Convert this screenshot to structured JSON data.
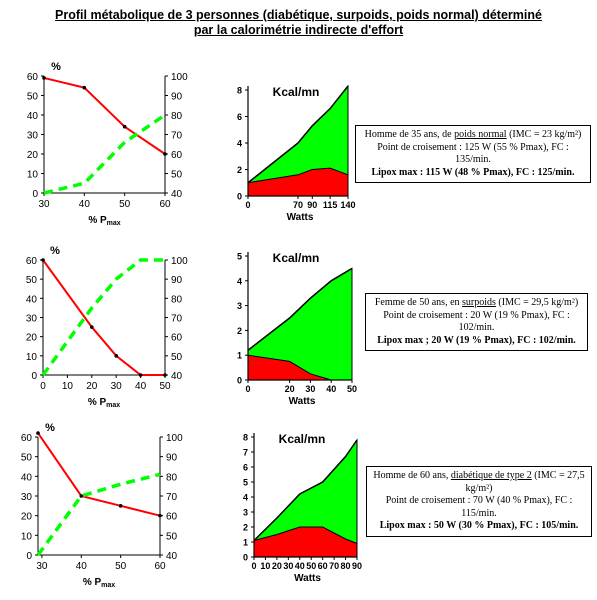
{
  "title": {
    "line1": "Profil métabolique de 3 personnes (diabétique, surpoids, poids normal) déterminé",
    "line2": "par la calorimétrie indirecte d'effort"
  },
  "colors": {
    "red": "#ff0000",
    "green": "#00ff00",
    "green_dashed": "#00ff00",
    "black": "#000000"
  },
  "persons": [
    {
      "info": {
        "line1_pre": "Homme de 35 ans, de ",
        "line1_u": "poids normal",
        "line1_post": " (IMC = 23 kg/m²)",
        "line2": "Point de croisement : 125 W (55 % Pmax), FC : 135/min.",
        "line3": "Lipox max : 115 W (48 % Pmax), FC : 125/min."
      }
    },
    {
      "info": {
        "line1_pre": "Femme de 50 ans, en ",
        "line1_u": "surpoids",
        "line1_post": " (IMC = 29,5 kg/m²)",
        "line2": "Point de croisement : 20 W (19 % Pmax), FC : 102/min.",
        "line3": "Lipox max ; 20 W (19 % Pmax), FC : 102/min."
      }
    },
    {
      "info": {
        "line1_pre": "Homme de 60 ans, ",
        "line1_u": "diabétique de type 2",
        "line1_post": " (IMC = 27,5 kg/m²)",
        "line2": "Point de croisement : 70 W (40 % Pmax), FC : 115/min.",
        "line3": "Lipox max : 50 W (30 % Pmax), FC : 105/min."
      }
    }
  ],
  "chart_data": [
    {
      "type": "line",
      "xlabel": "% Pmax",
      "ylabel_left": "%",
      "xlim": [
        30,
        60
      ],
      "x_ticks": [
        30,
        40,
        50,
        60
      ],
      "ylim_left": [
        0,
        60
      ],
      "y_ticks_left": [
        0,
        10,
        20,
        30,
        40,
        50,
        60
      ],
      "ylim_right": [
        40,
        100
      ],
      "y_ticks_right": [
        40,
        50,
        60,
        70,
        80,
        90,
        100
      ],
      "series": [
        {
          "axis": "left",
          "style": "solid-red",
          "x": [
            30,
            40,
            50,
            60
          ],
          "y": [
            59,
            54,
            34,
            20
          ]
        },
        {
          "axis": "right",
          "style": "dashed-green",
          "x": [
            30,
            40,
            50,
            60
          ],
          "y": [
            40,
            45,
            66,
            80
          ]
        }
      ]
    },
    {
      "type": "area",
      "ylabel": "Kcal/mn",
      "xlabel": "Watts",
      "x_ticks": [
        0,
        70,
        90,
        115,
        140
      ],
      "ylim": [
        0,
        8
      ],
      "y_ticks": [
        0,
        2,
        4,
        6,
        8
      ],
      "series": [
        {
          "style": "green-area-total",
          "x": [
            0,
            70,
            90,
            115,
            140
          ],
          "y": [
            1.0,
            4.0,
            5.3,
            6.6,
            8.3
          ]
        },
        {
          "style": "red-area-lipids",
          "x": [
            0,
            70,
            90,
            115,
            140
          ],
          "y": [
            1.0,
            1.6,
            2.0,
            2.1,
            1.6
          ]
        }
      ]
    },
    {
      "type": "line",
      "xlabel": "% Pmax",
      "ylabel_left": "%",
      "xlim": [
        0,
        50
      ],
      "x_ticks": [
        0,
        10,
        20,
        30,
        40,
        50
      ],
      "ylim_left": [
        0,
        60
      ],
      "y_ticks_left": [
        0,
        10,
        20,
        30,
        40,
        50,
        60
      ],
      "ylim_right": [
        40,
        100
      ],
      "y_ticks_right": [
        40,
        50,
        60,
        70,
        80,
        90,
        100
      ],
      "series": [
        {
          "axis": "left",
          "style": "solid-red",
          "x": [
            0,
            20,
            30,
            40,
            50
          ],
          "y": [
            60,
            25,
            10,
            0,
            0
          ]
        },
        {
          "axis": "right",
          "style": "dashed-green",
          "x": [
            0,
            20,
            30,
            40,
            50
          ],
          "y": [
            40,
            75,
            90,
            100,
            100
          ]
        }
      ]
    },
    {
      "type": "area",
      "ylabel": "Kcal/mn",
      "xlabel": "Watts",
      "x_ticks": [
        0,
        20,
        30,
        40,
        50
      ],
      "ylim": [
        0,
        5
      ],
      "y_ticks": [
        0,
        1,
        2,
        3,
        4,
        5
      ],
      "series": [
        {
          "style": "green-area-total",
          "x": [
            0,
            20,
            30,
            40,
            50
          ],
          "y": [
            1.2,
            2.5,
            3.3,
            4.0,
            4.5
          ]
        },
        {
          "style": "red-area-lipids",
          "x": [
            0,
            20,
            30,
            40,
            50
          ],
          "y": [
            1.0,
            0.75,
            0.25,
            0.0,
            0.0
          ]
        }
      ]
    },
    {
      "type": "line",
      "xlabel": "% Pmax",
      "ylabel_left": "%",
      "xlim": [
        29,
        60
      ],
      "x_ticks": [
        30,
        40,
        50,
        60
      ],
      "ylim_left": [
        0,
        60
      ],
      "y_ticks_left": [
        0,
        10,
        20,
        30,
        40,
        50,
        60
      ],
      "ylim_right": [
        40,
        100
      ],
      "y_ticks_right": [
        40,
        50,
        60,
        70,
        80,
        90,
        100
      ],
      "series": [
        {
          "axis": "left",
          "style": "solid-red",
          "x": [
            29,
            40,
            50,
            60
          ],
          "y": [
            62,
            30,
            25,
            20
          ]
        },
        {
          "axis": "right",
          "style": "dashed-green",
          "x": [
            29,
            40,
            50,
            60
          ],
          "y": [
            40,
            70,
            76,
            81
          ]
        }
      ]
    },
    {
      "type": "area",
      "ylabel": "Kcal/mn",
      "xlabel": "Watts",
      "x_ticks": [
        0,
        10,
        20,
        30,
        40,
        50,
        60,
        70,
        80,
        90
      ],
      "ylim": [
        0,
        8
      ],
      "y_ticks": [
        0,
        1,
        2,
        3,
        4,
        5,
        6,
        7,
        8
      ],
      "series": [
        {
          "style": "green-area-total",
          "x": [
            0,
            20,
            40,
            60,
            80,
            90
          ],
          "y": [
            1.1,
            2.6,
            4.2,
            5.0,
            6.7,
            7.8
          ]
        },
        {
          "style": "red-area-lipids",
          "x": [
            0,
            20,
            40,
            60,
            80,
            90
          ],
          "y": [
            1.1,
            1.5,
            2.0,
            2.0,
            1.2,
            0.9
          ]
        }
      ]
    }
  ]
}
